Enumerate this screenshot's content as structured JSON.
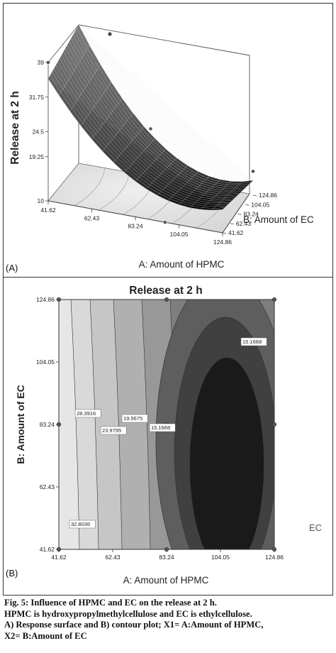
{
  "panel_a": {
    "label": "(A)",
    "z_axis_label": "Release at 2 h",
    "x_axis_label": "A: Amount of HPMC",
    "y_axis_label": "B: Amount of EC"
  },
  "panel_b": {
    "label": "(B)",
    "title": "Release at 2 h",
    "x_axis_label": "A: Amount of HPMC",
    "y_axis_label": "B: Amount of EC",
    "side_text": "EC"
  },
  "caption": {
    "line1": "Fig. 5: Influence of HPMC and EC on the release at 2 h.",
    "line2": "HPMC is hydroxypropylmethylcellulose and EC is ethylcellulose.",
    "line3": "A) Response surface and B) contour plot; X1= A:Amount of HPMC,",
    "line4": "X2= B:Amount of EC"
  },
  "chart_data": [
    {
      "type": "surface",
      "title": "",
      "xlabel": "A: Amount of HPMC",
      "ylabel": "B: Amount of EC",
      "zlabel": "Release at 2 h",
      "x_ticks": [
        "41.62",
        "62.43",
        "83.24",
        "104.05",
        "124.86"
      ],
      "y_ticks": [
        "41.62",
        "62.43",
        "83.24",
        "104.05",
        "124.86"
      ],
      "z_ticks": [
        "10",
        "19.25",
        "24.5",
        "31.75",
        "39"
      ],
      "xlim": [
        41.62,
        124.86
      ],
      "ylim": [
        41.62,
        124.86
      ],
      "zlim": [
        10,
        39
      ],
      "colors": {
        "surface_dark": "#111111",
        "surface_mid": "#5a5a5a",
        "surface_light": "#9a9a9a"
      }
    },
    {
      "type": "contour",
      "title": "Release at 2 h",
      "xlabel": "A: Amount of HPMC",
      "ylabel": "B: Amount of EC",
      "x_ticks": [
        "41.62",
        "62.43",
        "83.24",
        "104.05",
        "124.86"
      ],
      "y_ticks": [
        "41.62",
        "62.43",
        "83.24",
        "104.05",
        "124.86"
      ],
      "xlim": [
        41.62,
        124.86
      ],
      "ylim": [
        41.62,
        124.86
      ],
      "contour_labels": [
        "15.1668",
        "15.1668",
        "28.3916",
        "23.9795",
        "19.5675",
        "32.8036"
      ],
      "colors": {
        "lightest": "#e6e6e6",
        "darkest": "#1a1a1a"
      }
    }
  ]
}
